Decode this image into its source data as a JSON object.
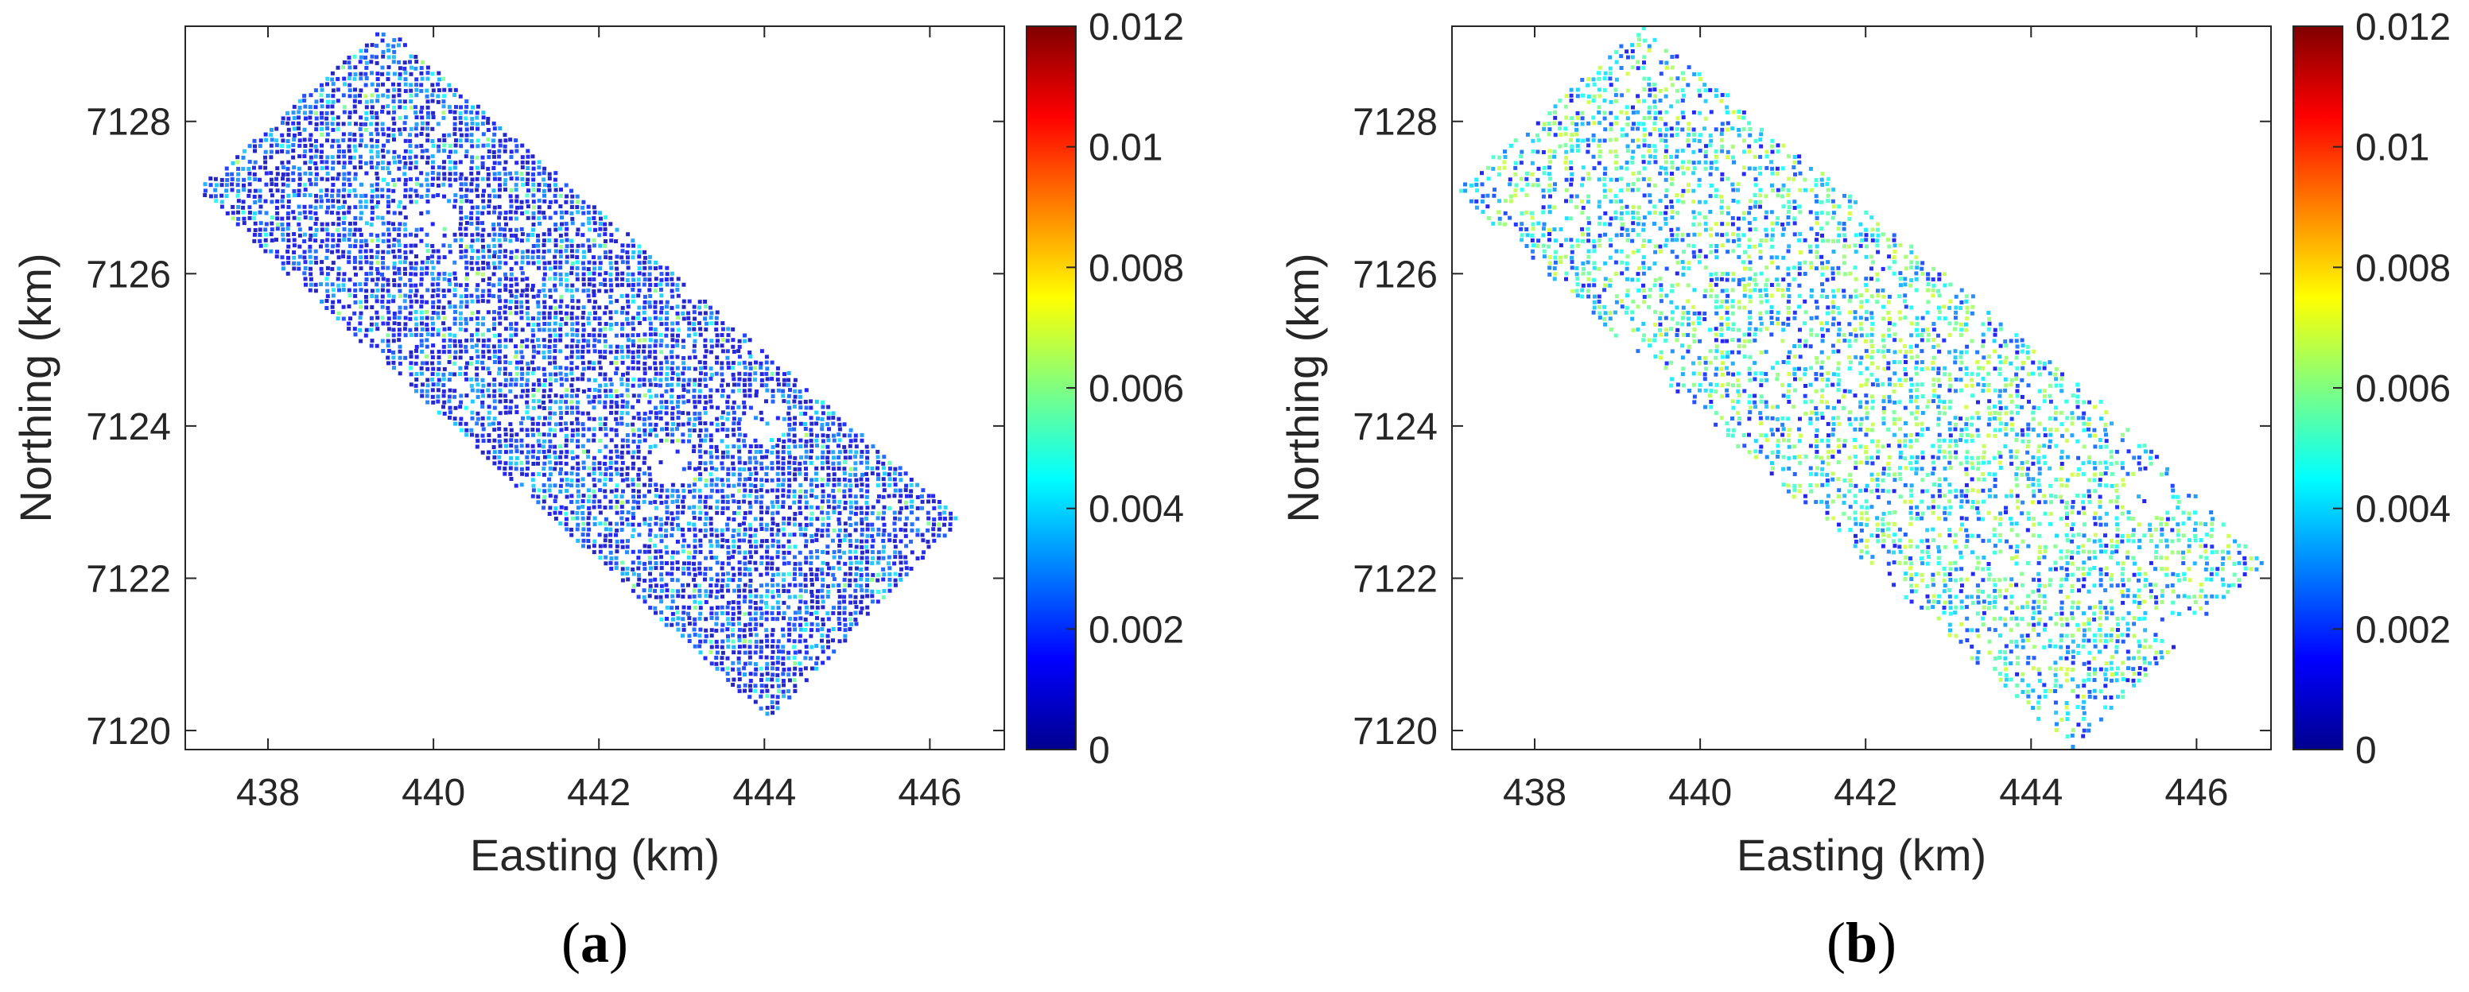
{
  "chart_data": [
    {
      "type": "heatmap",
      "panel_label": {
        "open": "(",
        "letter": "a",
        "close": ")"
      },
      "xlabel": "Easting (km)",
      "ylabel": "Northing (km)",
      "xlim": [
        437.0,
        446.9
      ],
      "ylim": [
        7119.75,
        7129.25
      ],
      "x_ticks": [
        438,
        440,
        442,
        444,
        446
      ],
      "x_tick_labels": [
        "438",
        "440",
        "442",
        "444",
        "446"
      ],
      "y_ticks": [
        7120,
        7122,
        7124,
        7126,
        7128
      ],
      "y_tick_labels": [
        "7120",
        "7122",
        "7124",
        "7126",
        "7128"
      ],
      "grid": false,
      "colormap": "jet",
      "colorbar": {
        "range": [
          0,
          0.012
        ],
        "ticks": [
          0,
          0.002,
          0.004,
          0.006,
          0.008,
          0.01,
          0.012
        ],
        "tick_labels": [
          "0",
          "0.002",
          "0.004",
          "0.006",
          "0.008",
          "0.01",
          "0.012"
        ]
      },
      "coverage_polygon": [
        [
          437.15,
          7127.1
        ],
        [
          439.4,
          7129.25
        ],
        [
          446.4,
          7122.75
        ],
        [
          444.05,
          7120.15
        ],
        [
          437.15,
          7127.1
        ]
      ],
      "dominant_value_range": [
        0.0005,
        0.004
      ],
      "blank_patches": [
        [
          440.0,
          7126.7
        ],
        [
          442.9,
          7123.5
        ],
        [
          444.0,
          7124.1
        ]
      ],
      "pattern": "dense speckle, predominantly dark blue to blue with scattered cyan, green and yellow points"
    },
    {
      "type": "heatmap",
      "panel_label": {
        "open": "(",
        "letter": "b",
        "close": ")"
      },
      "xlabel": "Easting (km)",
      "ylabel": "Northing (km)",
      "xlim": [
        437.0,
        446.9
      ],
      "ylim": [
        7119.75,
        7129.25
      ],
      "x_ticks": [
        438,
        440,
        442,
        444,
        446
      ],
      "x_tick_labels": [
        "438",
        "440",
        "442",
        "444",
        "446"
      ],
      "y_ticks": [
        7120,
        7122,
        7124,
        7126,
        7128
      ],
      "y_tick_labels": [
        "7120",
        "7122",
        "7124",
        "7126",
        "7128"
      ],
      "grid": false,
      "colormap": "jet",
      "colorbar": {
        "range": [
          0,
          0.012
        ],
        "ticks": [
          0,
          0.002,
          0.004,
          0.006,
          0.008,
          0.01,
          0.012
        ],
        "tick_labels": [
          "0",
          "0.002",
          "0.004",
          "0.006",
          "0.008",
          "0.01",
          "0.012"
        ]
      },
      "coverage_polygon": [
        [
          437.05,
          7127.1
        ],
        [
          439.3,
          7129.25
        ],
        [
          445.0,
          7124.2
        ],
        [
          446.8,
          7122.2
        ],
        [
          444.5,
          7119.75
        ],
        [
          437.05,
          7127.1
        ]
      ],
      "dominant_value_range": [
        0.001,
        0.007
      ],
      "blank_patches": [
        [
          440.3,
          7123.3
        ],
        [
          445.4,
          7123.1
        ],
        [
          445.8,
          7121.4
        ]
      ],
      "pattern": "sparser speckle with more cyan, green and yellow points; blue clusters near the south-east end"
    }
  ],
  "colors": {
    "background": "#ffffff",
    "axes": "#262626",
    "jet_stops": [
      "#00008f",
      "#0000ff",
      "#0080ff",
      "#00ffff",
      "#80ff80",
      "#ffff00",
      "#ff8000",
      "#ff0000",
      "#800000"
    ]
  }
}
